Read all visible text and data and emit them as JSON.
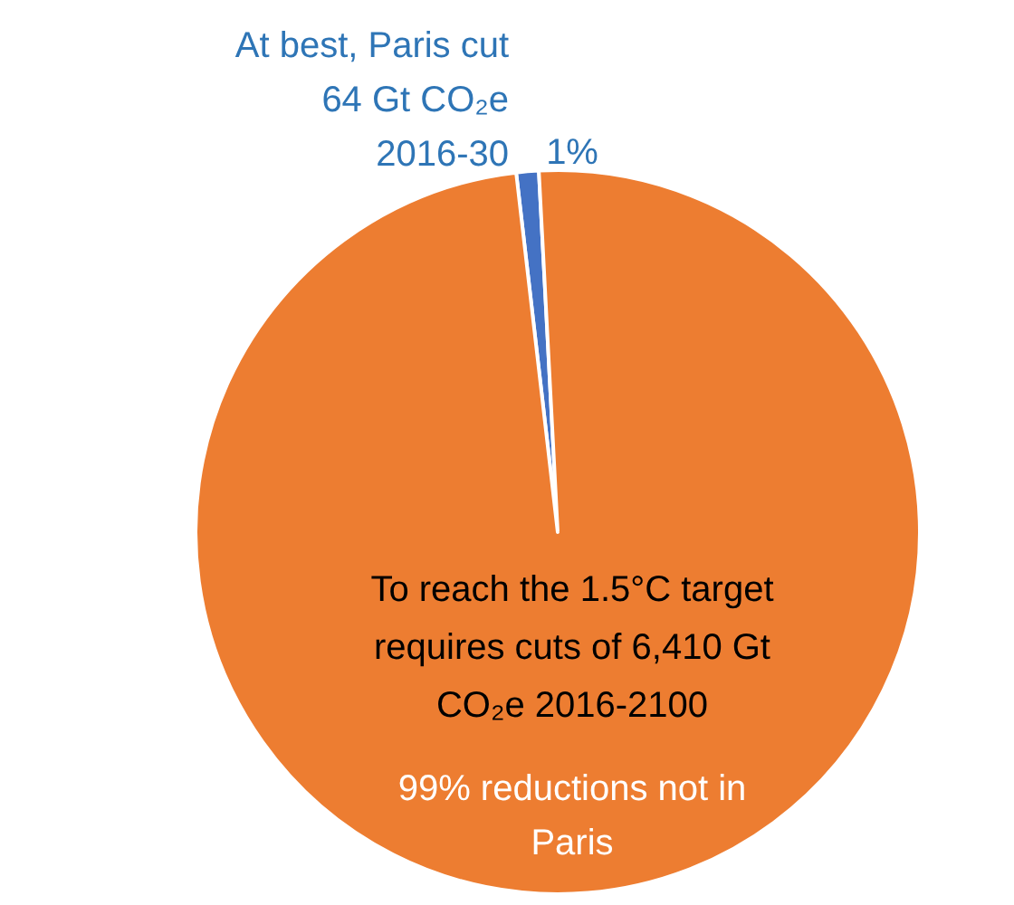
{
  "chart_data": {
    "type": "pie",
    "categories": [
      "At best, Paris cut\n64 Gt CO₂e\n2016-30",
      "To reach the 1.5°C target\nrequires cuts of 6,410 Gt\nCO₂e 2016-2100"
    ],
    "values": [
      1,
      99
    ],
    "colors": [
      "#4472c4",
      "#ed7d31"
    ],
    "value_labels": [
      "1%",
      "99% reductions not in\nParis"
    ]
  }
}
